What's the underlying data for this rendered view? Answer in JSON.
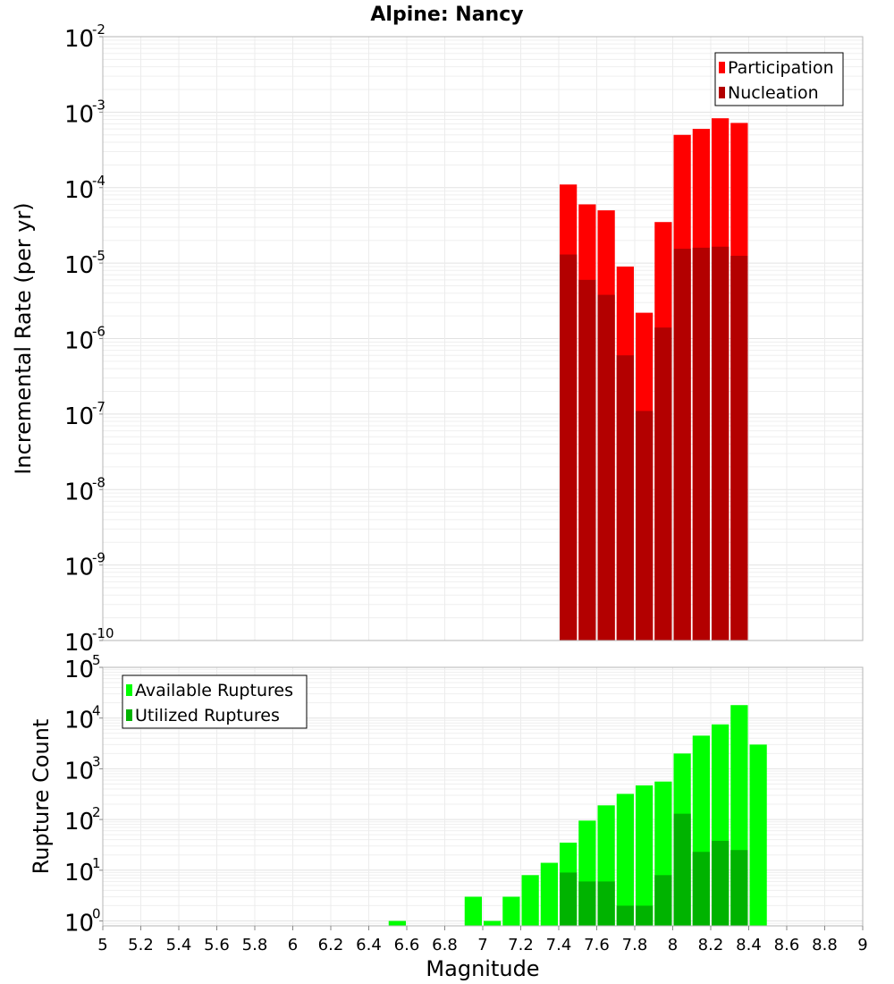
{
  "chart_data": [
    {
      "type": "bar",
      "title": "Alpine: Nancy",
      "xlabel": "",
      "ylabel": "Incremental Rate (per yr)",
      "yscale": "log",
      "ylim": [
        1e-10,
        0.01
      ],
      "xlim": [
        5,
        9
      ],
      "grid": true,
      "legend_position": "top-right",
      "bin_width": 0.1,
      "series": [
        {
          "name": "Participation",
          "color": "#ff0000",
          "x": [
            7.45,
            7.55,
            7.65,
            7.75,
            7.85,
            7.95,
            8.05,
            8.15,
            8.25,
            8.35
          ],
          "values": [
            0.00011,
            6e-05,
            5e-05,
            9e-06,
            2.2e-06,
            3.5e-05,
            0.0005,
            0.0006,
            0.00083,
            0.00072
          ]
        },
        {
          "name": "Nucleation",
          "color": "#b30000",
          "x": [
            7.45,
            7.55,
            7.65,
            7.75,
            7.85,
            7.95,
            8.05,
            8.15,
            8.25,
            8.35
          ],
          "values": [
            1.3e-05,
            6e-06,
            3.8e-06,
            6e-07,
            1.1e-07,
            1.4e-06,
            1.55e-05,
            1.6e-05,
            1.65e-05,
            1.25e-05
          ]
        }
      ]
    },
    {
      "type": "bar",
      "title": "",
      "xlabel": "Magnitude",
      "ylabel": "Rupture Count",
      "yscale": "log",
      "ylim": [
        0.8,
        100000
      ],
      "xlim": [
        5,
        9
      ],
      "grid": true,
      "legend_position": "top-left",
      "bin_width": 0.1,
      "series": [
        {
          "name": "Available Ruptures",
          "color": "#00ff00",
          "x": [
            6.55,
            6.95,
            7.05,
            7.15,
            7.25,
            7.35,
            7.45,
            7.55,
            7.65,
            7.75,
            7.85,
            7.95,
            8.05,
            8.15,
            8.25,
            8.35,
            8.45
          ],
          "values": [
            1,
            3,
            1,
            3,
            8,
            14,
            35,
            95,
            190,
            320,
            470,
            560,
            2000,
            4500,
            7500,
            18000,
            3000
          ]
        },
        {
          "name": "Utilized Ruptures",
          "color": "#00b300",
          "x": [
            7.45,
            7.55,
            7.65,
            7.75,
            7.85,
            7.95,
            8.05,
            8.15,
            8.25,
            8.35
          ],
          "values": [
            9,
            6,
            6,
            2,
            2,
            8,
            130,
            23,
            38,
            25
          ]
        }
      ]
    }
  ],
  "x_ticks": [
    "5",
    "5.2",
    "5.4",
    "5.6",
    "5.8",
    "6",
    "6.2",
    "6.4",
    "6.6",
    "6.8",
    "7",
    "7.2",
    "7.4",
    "7.6",
    "7.8",
    "8",
    "8.2",
    "8.4",
    "8.6",
    "8.8",
    "9"
  ],
  "top_y_ticks": [
    {
      "base": "10",
      "exp": "-10"
    },
    {
      "base": "10",
      "exp": "-9"
    },
    {
      "base": "10",
      "exp": "-8"
    },
    {
      "base": "10",
      "exp": "-7"
    },
    {
      "base": "10",
      "exp": "-6"
    },
    {
      "base": "10",
      "exp": "-5"
    },
    {
      "base": "10",
      "exp": "-4"
    },
    {
      "base": "10",
      "exp": "-3"
    },
    {
      "base": "10",
      "exp": "-2"
    }
  ],
  "bottom_y_ticks": [
    {
      "base": "10",
      "exp": "0"
    },
    {
      "base": "10",
      "exp": "1"
    },
    {
      "base": "10",
      "exp": "2"
    },
    {
      "base": "10",
      "exp": "3"
    },
    {
      "base": "10",
      "exp": "4"
    },
    {
      "base": "10",
      "exp": "5"
    }
  ]
}
